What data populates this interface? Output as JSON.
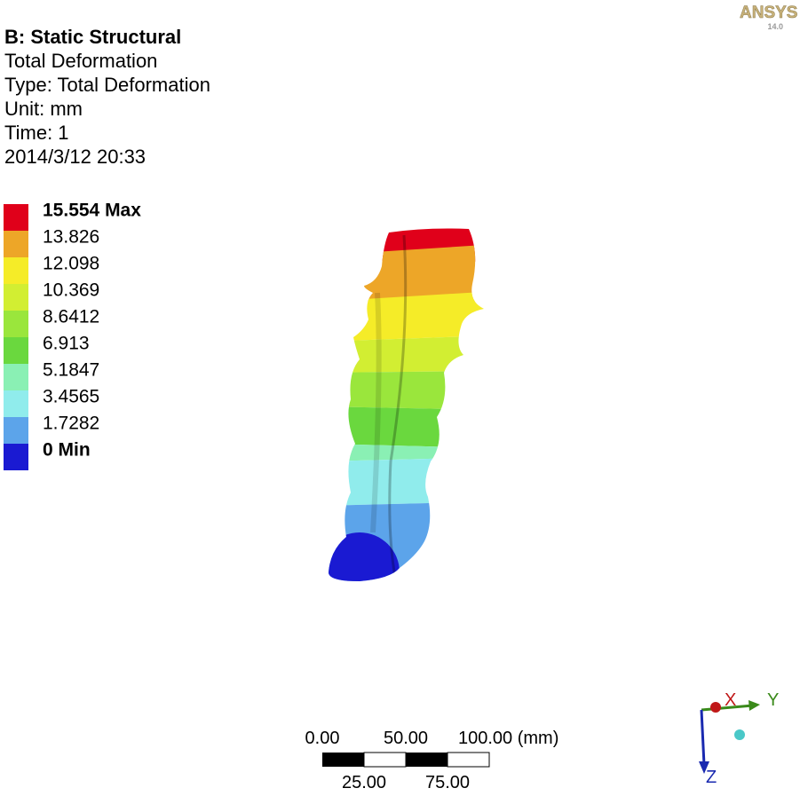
{
  "header": {
    "logo": "ANSYS",
    "version": "14.0",
    "lines": [
      "B: Static Structural",
      "Total Deformation",
      "Type: Total Deformation",
      "Unit: mm",
      "Time: 1",
      "2014/3/12 20:33"
    ]
  },
  "legend": {
    "items": [
      {
        "label": "15.554 Max",
        "color": "#e0001a"
      },
      {
        "label": "13.826",
        "color": "#eda628"
      },
      {
        "label": "12.098",
        "color": "#f5ec28"
      },
      {
        "label": "10.369",
        "color": "#d2ee32"
      },
      {
        "label": "8.6412",
        "color": "#9ae63c"
      },
      {
        "label": "6.913",
        "color": "#6ad83e"
      },
      {
        "label": "5.1847",
        "color": "#8af0b4"
      },
      {
        "label": "3.4565",
        "color": "#90ecec"
      },
      {
        "label": "1.7282",
        "color": "#5ca4ea"
      },
      {
        "label": "0 Min",
        "color": "#1a1ad2"
      }
    ]
  },
  "scale_bar": {
    "top_labels": [
      "0.00",
      "50.00",
      "100.00 (mm)"
    ],
    "bottom_labels": [
      "25.00",
      "75.00"
    ]
  },
  "triad": {
    "x": "X",
    "y": "Y",
    "z": "Z"
  }
}
